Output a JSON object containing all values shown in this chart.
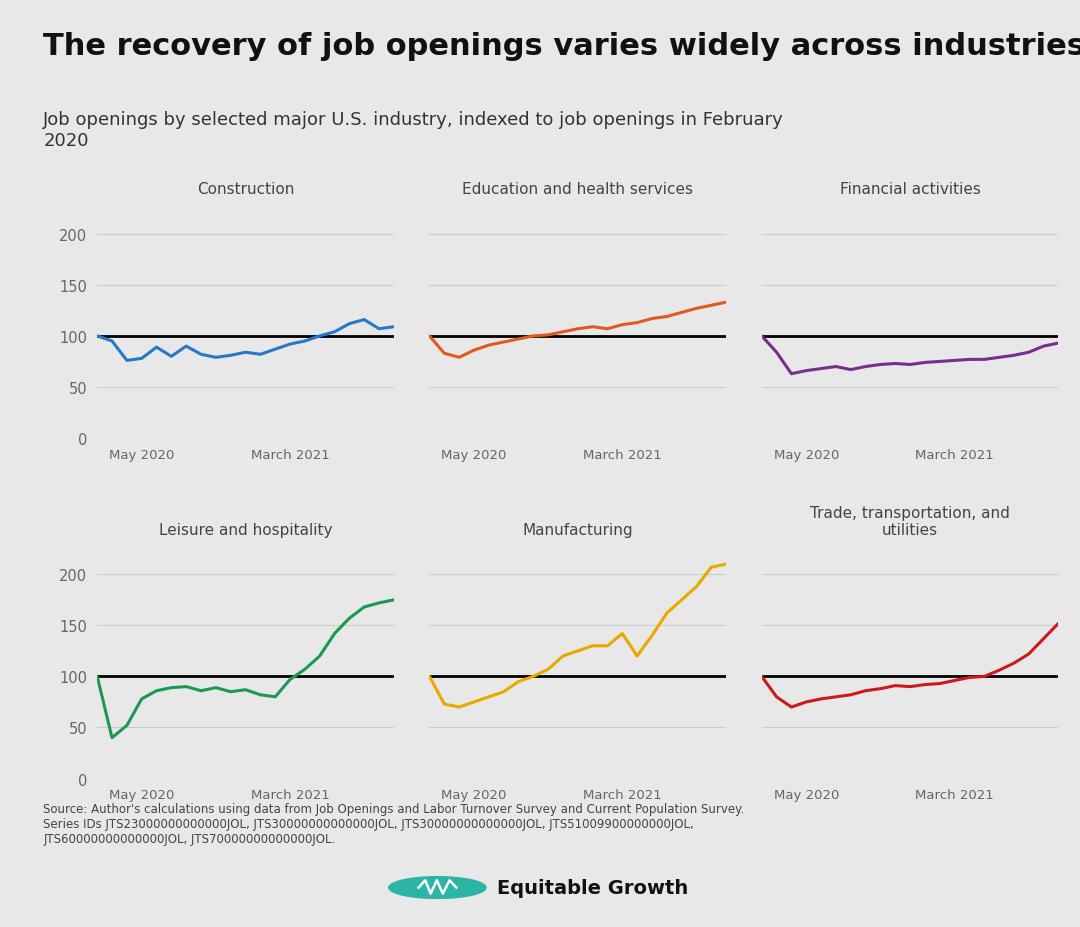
{
  "title": "The recovery of job openings varies widely across industries",
  "subtitle": "Job openings by selected major U.S. industry, indexed to job openings in February\n2020",
  "source_text": "Source: Author's calculations using data from Job Openings and Labor Turnover Survey and Current Population Survey.\nSeries IDs JTS23000000000000JOL, JTS30000000000000JOL, JTS30000000000000JOL, JTS51009900000000JOL,\nJTS60000000000000JOL, JTS70000000000000JOL.",
  "background_color": "#e8e8e8",
  "panels": [
    {
      "title": "Construction",
      "color": "#2878c8",
      "data": [
        100,
        95,
        76,
        78,
        89,
        80,
        90,
        82,
        79,
        81,
        84,
        82,
        87,
        92,
        95,
        100,
        104,
        112,
        116,
        107,
        109
      ]
    },
    {
      "title": "Education and health services",
      "color": "#e05a20",
      "data": [
        100,
        83,
        79,
        86,
        91,
        94,
        97,
        100,
        101,
        104,
        107,
        109,
        107,
        111,
        113,
        117,
        119,
        123,
        127,
        130,
        133
      ]
    },
    {
      "title": "Financial activities",
      "color": "#7B2D8B",
      "data": [
        100,
        84,
        63,
        66,
        68,
        70,
        67,
        70,
        72,
        73,
        72,
        74,
        75,
        76,
        77,
        77,
        79,
        81,
        84,
        90,
        93
      ]
    },
    {
      "title": "Leisure and hospitality",
      "color": "#1a9a50",
      "data": [
        100,
        40,
        52,
        78,
        86,
        89,
        90,
        86,
        89,
        85,
        87,
        82,
        80,
        97,
        107,
        120,
        142,
        157,
        168,
        172,
        175
      ]
    },
    {
      "title": "Manufacturing",
      "color": "#e8a800",
      "data": [
        100,
        73,
        70,
        75,
        80,
        85,
        95,
        100,
        107,
        120,
        125,
        130,
        130,
        142,
        120,
        140,
        162,
        175,
        188,
        207,
        210
      ]
    },
    {
      "title": "Trade, transportation, and\nutilities",
      "color": "#cc1a1a",
      "data": [
        100,
        80,
        70,
        75,
        78,
        80,
        82,
        86,
        88,
        91,
        90,
        92,
        93,
        96,
        99,
        100,
        106,
        113,
        122,
        137,
        152
      ]
    }
  ],
  "ylim": [
    0,
    230
  ],
  "yticks": [
    0,
    50,
    100,
    150,
    200
  ],
  "x_tick_labels": [
    "May 2020",
    "March 2021"
  ],
  "x_tick_positions": [
    3,
    13
  ],
  "n_points": 21,
  "ref_line": 100,
  "grid_color": "#cccccc",
  "tick_color": "#666666",
  "title_fontsize": 22,
  "subtitle_fontsize": 13,
  "panel_title_fontsize": 11,
  "source_fontsize": 8.5,
  "logo_text": "Equitable Growth",
  "logo_color": "#2ab5a5"
}
